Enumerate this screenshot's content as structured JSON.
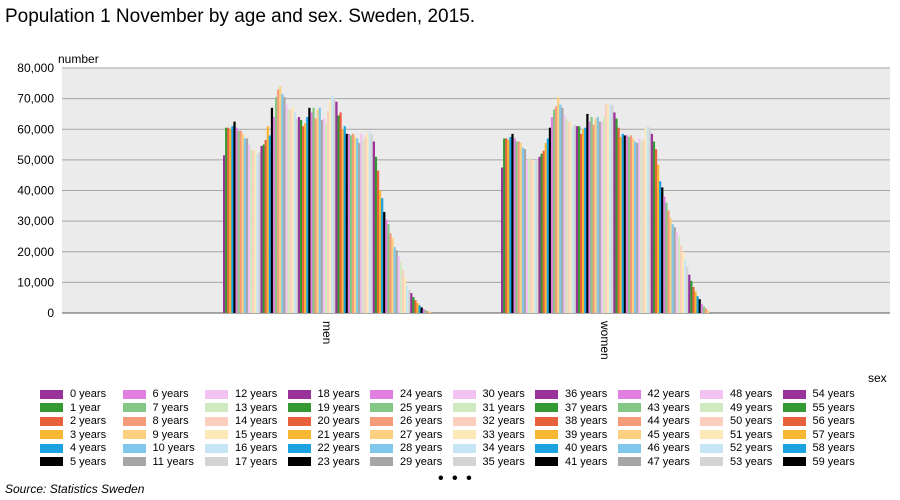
{
  "chart_data": {
    "type": "bar",
    "title": "Population 1 November by age and sex. Sweden, 2015.",
    "ylabel": "number",
    "xlabel": "sex",
    "ylim": [
      0,
      80000
    ],
    "yticks": [
      "0",
      "10,000",
      "20,000",
      "30,000",
      "40,000",
      "50,000",
      "60,000",
      "70,000",
      "80,000"
    ],
    "ytick_values": [
      0,
      10000,
      20000,
      30000,
      40000,
      50000,
      60000,
      70000,
      80000
    ],
    "grid": true,
    "legend_position": "bottom",
    "categories": [
      "men",
      "women"
    ],
    "series_names": [
      "0 years",
      "1 year",
      "2 years",
      "3 years",
      "4 years",
      "5 years",
      "6 years",
      "7 years",
      "8 years",
      "9 years",
      "10 years",
      "11 years",
      "12 years",
      "13 years",
      "14 years",
      "15 years",
      "16 years",
      "17 years",
      "18 years",
      "19 years",
      "20 years",
      "21 years",
      "22 years",
      "23 years",
      "24 years",
      "25 years",
      "26 years",
      "27 years",
      "28 years",
      "29 years",
      "30 years",
      "31 years",
      "32 years",
      "33 years",
      "34 years",
      "35 years",
      "36 years",
      "37 years",
      "38 years",
      "39 years",
      "40 years",
      "41 years",
      "42 years",
      "43 years",
      "44 years",
      "45 years",
      "46 years",
      "47 years",
      "48 years",
      "49 years",
      "50 years",
      "51 years",
      "52 years",
      "53 years",
      "54 years",
      "55 years",
      "56 years",
      "57 years",
      "58 years",
      "59 years"
    ],
    "values_by_category": {
      "men": [
        51500,
        60500,
        60500,
        60000,
        61000,
        62500,
        60500,
        59500,
        59500,
        58500,
        57000,
        57000,
        55000,
        53500,
        53000,
        53000,
        52000,
        52500,
        54500,
        55000,
        56500,
        61000,
        58000,
        67000,
        64000,
        70500,
        73000,
        74000,
        71500,
        70500,
        68000,
        66500,
        66500,
        67000,
        65500,
        63500,
        64000,
        63000,
        61000,
        62000,
        64000,
        67000,
        65500,
        67000,
        63500,
        66500,
        67000,
        63000,
        63500,
        62000,
        66000,
        69500,
        71000,
        70000,
        69000,
        64500,
        65500,
        60000,
        61000,
        58500
      ],
      "women": [
        47500,
        57000,
        57000,
        56500,
        57500,
        58500,
        57000,
        56000,
        56000,
        55500,
        54000,
        53500,
        50000,
        50500,
        50000,
        50000,
        49500,
        50000,
        51000,
        52000,
        53000,
        55500,
        57000,
        60500,
        64000,
        66500,
        67500,
        70500,
        68000,
        67000,
        64500,
        63500,
        62500,
        62500,
        61000,
        61500,
        61000,
        61000,
        58500,
        60000,
        60500,
        65000,
        62500,
        64000,
        61500,
        63500,
        64000,
        62500,
        62500,
        64000,
        68000,
        68500,
        68000,
        68000,
        65500,
        63500,
        60500,
        57500,
        58500,
        58000
      ]
    },
    "tail_series_unlabeled": {
      "men": [
        58500,
        58000,
        58500,
        57500,
        57000,
        55500,
        58500,
        56500,
        57500,
        59000,
        59500,
        58500,
        56000,
        51000,
        46500,
        40000,
        37500,
        33000,
        30500,
        29000,
        26000,
        24500,
        21500,
        20500,
        18500,
        16500,
        14000,
        11500,
        9000,
        7500,
        6500,
        5200,
        4200,
        3300,
        2500,
        1800,
        1300,
        900,
        600,
        400
      ],
      "women": [
        58000,
        57500,
        58000,
        57000,
        56000,
        55500,
        57000,
        56000,
        56500,
        60500,
        61000,
        60500,
        58500,
        56000,
        53500,
        48500,
        43000,
        41000,
        38000,
        36000,
        33500,
        31000,
        29000,
        28000,
        26500,
        25000,
        22000,
        20000,
        17000,
        15000,
        12500,
        10500,
        8500,
        7000,
        5500,
        4500,
        3000,
        2200,
        1500,
        900
      ]
    },
    "colors": [
      "#993399",
      "#339933",
      "#e8613d",
      "#f7b733",
      "#1aa3e0",
      "#000000",
      "#e07fe0",
      "#85c785",
      "#f59a7a",
      "#fbd080",
      "#7fc8ec",
      "#a6a6a6",
      "#f2c2f2",
      "#cfeac1",
      "#fbcfbd",
      "#fde8b8",
      "#c6e6f6",
      "#d4d4d4"
    ],
    "legend_columns": [
      [
        "0 years",
        "1 year",
        "2 years",
        "3 years",
        "4 years",
        "5 years"
      ],
      [
        "6 years",
        "7 years",
        "8 years",
        "9 years",
        "10 years",
        "11 years"
      ],
      [
        "12 years",
        "13 years",
        "14 years",
        "15 years",
        "16 years",
        "17 years"
      ],
      [
        "18 years",
        "19 years",
        "20 years",
        "21 years",
        "22 years",
        "23 years"
      ],
      [
        "24 years",
        "25 years",
        "26 years",
        "27 years",
        "28 years",
        "29 years"
      ],
      [
        "30 years",
        "31 years",
        "32 years",
        "33 years",
        "34 years",
        "35 years"
      ],
      [
        "36 years",
        "37 years",
        "38 years",
        "39 years",
        "40 years",
        "41 years"
      ],
      [
        "42 years",
        "43 years",
        "44 years",
        "45 years",
        "46 years",
        "47 years"
      ],
      [
        "48 years",
        "49 years",
        "50 years",
        "51 years",
        "52 years",
        "53 years"
      ],
      [
        "54 years",
        "55 years",
        "56 years",
        "57 years",
        "58 years",
        "59 years"
      ]
    ],
    "source": "Source: Statistics Sweden",
    "more_indicator": "• • •"
  }
}
